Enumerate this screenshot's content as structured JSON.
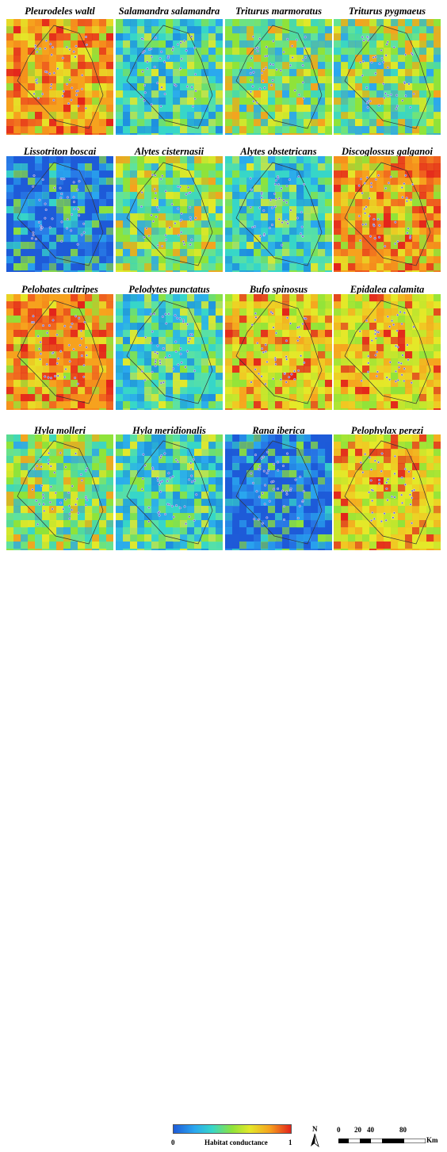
{
  "panels": [
    {
      "title": "Pleurodeles waltl",
      "palette": "hot"
    },
    {
      "title": "Salamandra salamandra",
      "palette": "cool"
    },
    {
      "title": "Triturus marmoratus",
      "palette": "mid"
    },
    {
      "title": "Triturus pygmaeus",
      "palette": "mid"
    },
    {
      "title": "Lissotriton boscai",
      "palette": "cold"
    },
    {
      "title": "Alytes cisternasii",
      "palette": "mid"
    },
    {
      "title": "Alytes obstetricans",
      "palette": "cool"
    },
    {
      "title": "Discoglossus galganoi",
      "palette": "hot"
    },
    {
      "title": "Pelobates cultripes",
      "palette": "hot"
    },
    {
      "title": "Pelodytes punctatus",
      "palette": "cool"
    },
    {
      "title": "Bufo spinosus",
      "palette": "warm"
    },
    {
      "title": "Epidalea calamita",
      "palette": "warm"
    },
    {
      "title": "Hyla molleri",
      "palette": "mid"
    },
    {
      "title": "Hyla meridionalis",
      "palette": "cool"
    },
    {
      "title": "Rana iberica",
      "palette": "cold"
    },
    {
      "title": "Pelophylax perezi",
      "palette": "warm"
    }
  ],
  "legend": {
    "title": "Habitat conductance",
    "min_label": "0",
    "max_label": "1",
    "colors": [
      "#1e5bd8",
      "#2aa7ef",
      "#37d6c8",
      "#8fe33a",
      "#e4e829",
      "#f6a21e",
      "#e3231b"
    ]
  },
  "north_label": "N",
  "scale_bar": {
    "ticks": [
      "0",
      "20",
      "40",
      "80"
    ],
    "unit": "Km"
  }
}
